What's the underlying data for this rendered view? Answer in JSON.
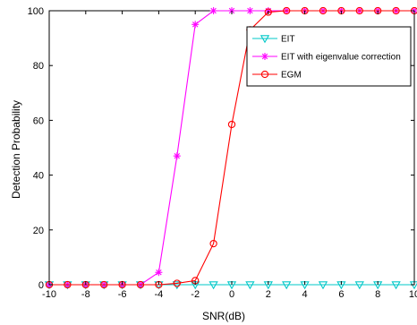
{
  "chart_data": {
    "type": "line",
    "xlabel": "SNR(dB)",
    "ylabel": "Detection Probability",
    "xlim": [
      -10,
      10
    ],
    "ylim": [
      0,
      100
    ],
    "xticks": [
      -10,
      -8,
      -6,
      -4,
      -2,
      0,
      2,
      4,
      6,
      8,
      10
    ],
    "yticks": [
      0,
      20,
      40,
      60,
      80,
      100
    ],
    "grid": false,
    "legend_position": "top-right",
    "x": [
      -10,
      -9,
      -8,
      -7,
      -6,
      -5,
      -4,
      -3,
      -2,
      -1,
      0,
      1,
      2,
      3,
      4,
      5,
      6,
      7,
      8,
      9,
      10
    ],
    "series": [
      {
        "name": "EIT",
        "color": "#00c8c8",
        "marker": "triangle-down",
        "values": [
          0,
          0,
          0,
          0,
          0,
          0,
          0,
          0,
          0,
          0,
          0,
          0,
          0,
          0,
          0,
          0,
          0,
          0,
          0,
          0,
          0
        ]
      },
      {
        "name": "EIT with eigenvalue correction",
        "color": "#ff00ff",
        "marker": "star",
        "values": [
          0,
          0,
          0,
          0,
          0,
          0,
          4.5,
          47,
          95,
          100,
          100,
          100,
          100,
          100,
          100,
          100,
          100,
          100,
          100,
          100,
          100
        ]
      },
      {
        "name": "EGM",
        "color": "#ff0000",
        "marker": "circle",
        "values": [
          0,
          0,
          0,
          0,
          0,
          0,
          0,
          0.5,
          1.5,
          15,
          58.5,
          93,
          99.5,
          100,
          100,
          100,
          100,
          100,
          100,
          100,
          100
        ]
      }
    ]
  }
}
